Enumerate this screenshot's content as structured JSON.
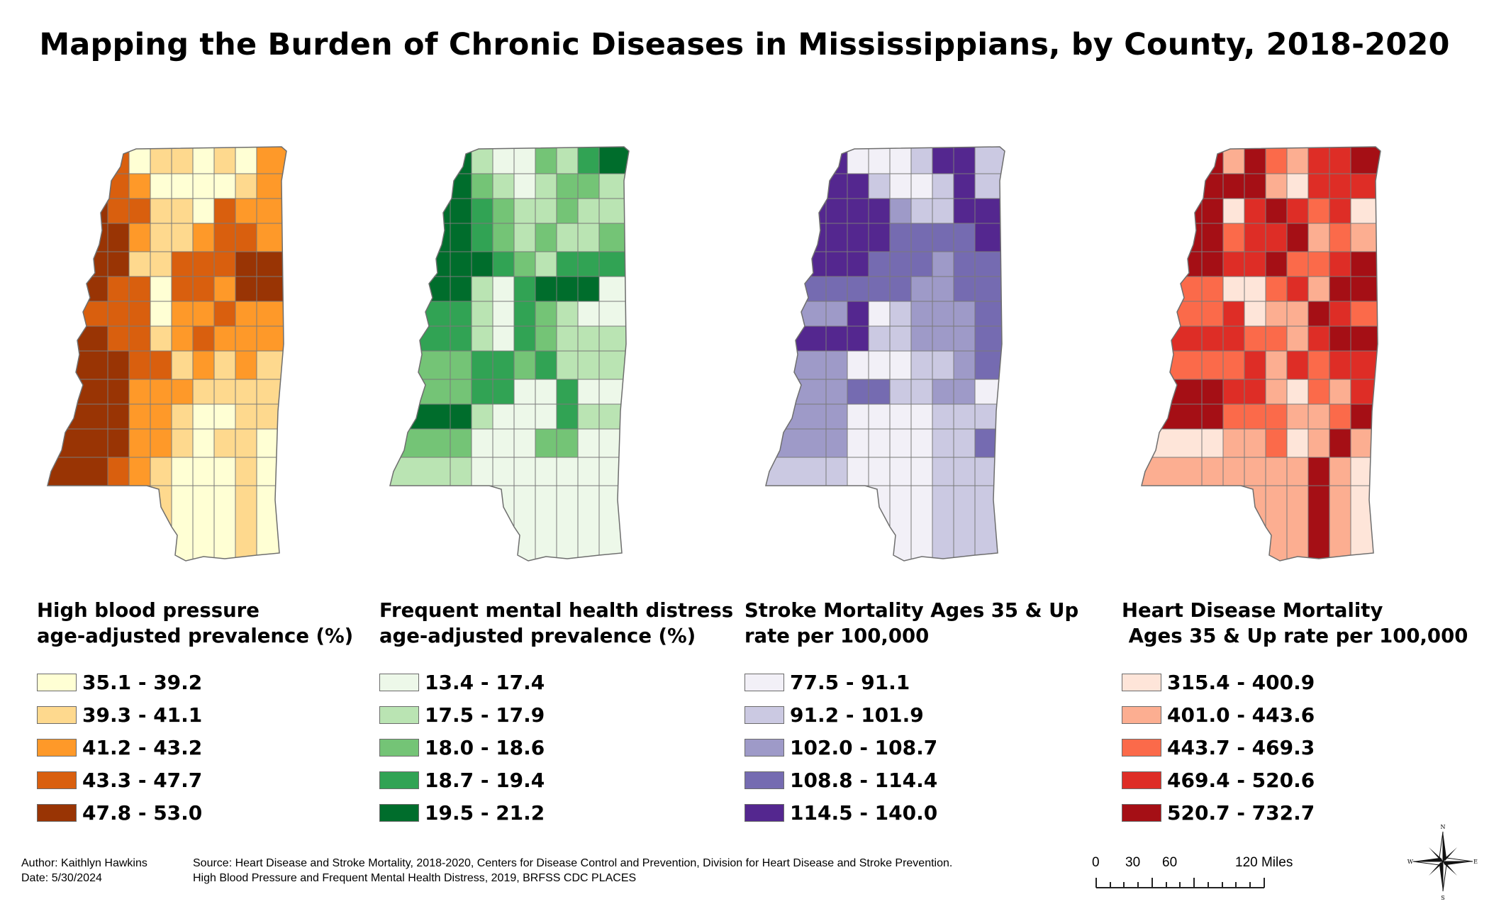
{
  "title": "Mapping the Burden of Chronic Diseases in Mississippians, by County, 2018-2020",
  "maps": [
    {
      "legend_title": "High blood pressure\nage-adjusted prevalence (%)",
      "classes": [
        {
          "label": "35.1 - 39.2",
          "color": "#ffffd4"
        },
        {
          "label": "39.3 - 41.1",
          "color": "#fed98e"
        },
        {
          "label": "41.2 - 43.2",
          "color": "#fe9929"
        },
        {
          "label": "43.3 - 47.7",
          "color": "#d95f0e"
        },
        {
          "label": "47.8 - 53.0",
          "color": "#993404"
        }
      ]
    },
    {
      "legend_title": "Frequent mental health distress\nage-adjusted prevalence (%)",
      "classes": [
        {
          "label": "13.4 - 17.4",
          "color": "#edf8e9"
        },
        {
          "label": "17.5 - 17.9",
          "color": "#bae4b3"
        },
        {
          "label": "18.0 - 18.6",
          "color": "#74c476"
        },
        {
          "label": "18.7 - 19.4",
          "color": "#31a354"
        },
        {
          "label": "19.5 - 21.2",
          "color": "#006d2c"
        }
      ]
    },
    {
      "legend_title": "Stroke Mortality Ages 35 & Up\nrate per 100,000",
      "classes": [
        {
          "label": "77.5 - 91.1",
          "color": "#f2f0f7"
        },
        {
          "label": "91.2 - 101.9",
          "color": "#cbc9e2"
        },
        {
          "label": "102.0 - 108.7",
          "color": "#9e9ac8"
        },
        {
          "label": "108.8 - 114.4",
          "color": "#756bb1"
        },
        {
          "label": "114.5 - 140.0",
          "color": "#54278f"
        }
      ]
    },
    {
      "legend_title": "Heart Disease Mortality\n Ages 35 & Up rate per 100,000",
      "classes": [
        {
          "label": "315.4 - 400.9",
          "color": "#fee5d9"
        },
        {
          "label": "401.0 - 443.6",
          "color": "#fcae91"
        },
        {
          "label": "443.7 - 469.3",
          "color": "#fb6a4a"
        },
        {
          "label": "469.4 - 520.6",
          "color": "#de2d26"
        },
        {
          "label": "520.7 - 732.7",
          "color": "#a50f15"
        }
      ]
    }
  ],
  "footer": {
    "author": "Author: Kaithlyn Hawkins",
    "date": "Date: 5/30/2024",
    "source_line1": "Source: Heart Disease and Stroke Mortality, 2018-2020, Centers for Disease Control and Prevention, Division for Heart Disease and Stroke Prevention.",
    "source_line2": "High Blood Pressure and Frequent Mental Health Distress, 2019, BRFSS CDC PLACES"
  },
  "scale_bar": {
    "ticks": [
      "0",
      "30",
      "60",
      "120 Miles"
    ]
  },
  "compass": {
    "n": "N",
    "s": "S",
    "e": "E",
    "w": "W"
  }
}
